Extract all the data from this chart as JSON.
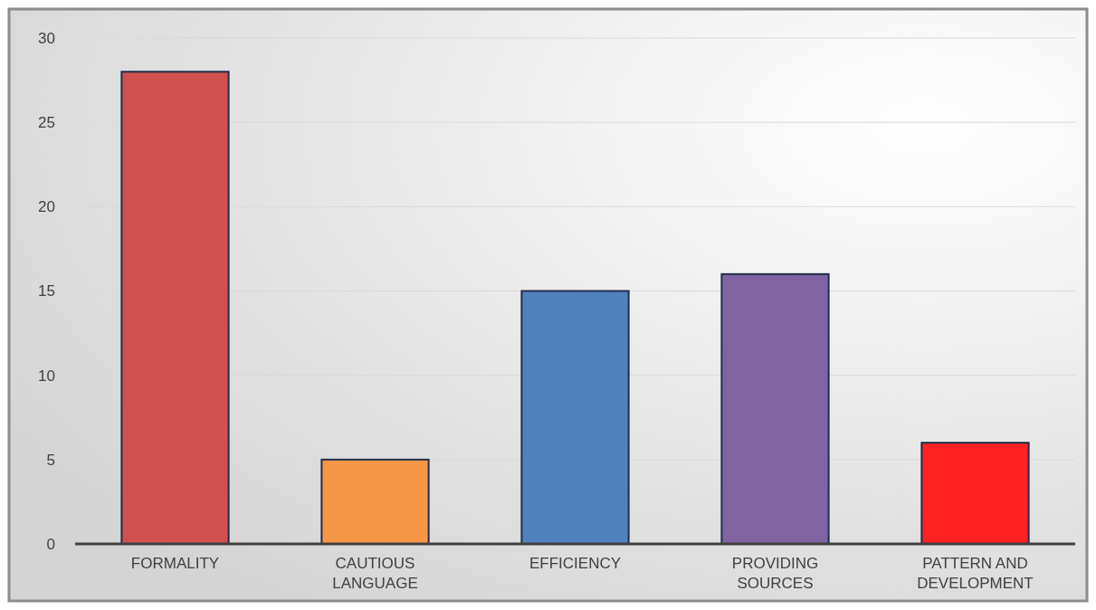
{
  "chart_data": {
    "type": "bar",
    "categories": [
      "FORMALITY",
      "CAUTIOUS LANGUAGE",
      "EFFICIENCY",
      "PROVIDING SOURCES",
      "PATTERN AND DEVELOPMENT"
    ],
    "values": [
      28,
      5,
      15,
      16,
      6
    ],
    "colors": [
      "#d0504d",
      "#f79646",
      "#4f81bd",
      "#8064a2",
      "#fe2222"
    ],
    "ylim": [
      0,
      30
    ],
    "yticks": [
      0,
      5,
      10,
      15,
      20,
      25,
      30
    ],
    "grid": "y"
  }
}
